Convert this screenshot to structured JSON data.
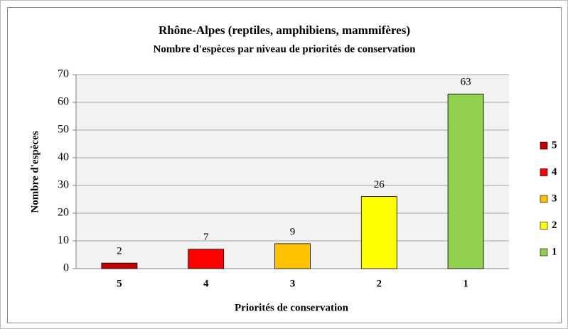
{
  "chart_data": {
    "type": "bar",
    "title": "Rhône-Alpes (reptiles, amphibiens, mammifères)",
    "subtitle": "Nombre d'espèces par niveau de priorités de conservation",
    "x_label": "Priorités de conservation",
    "y_label": "Nombre d'espèces",
    "categories": [
      "5",
      "4",
      "3",
      "2",
      "1"
    ],
    "values": [
      2,
      7,
      9,
      26,
      63
    ],
    "colors": [
      "#c00000",
      "#ff0000",
      "#ffc000",
      "#ffff00",
      "#92d050"
    ],
    "ylim": [
      0,
      70
    ],
    "yticks": [
      0,
      10,
      20,
      30,
      40,
      50,
      60,
      70
    ],
    "grid": true,
    "legend": "right"
  }
}
